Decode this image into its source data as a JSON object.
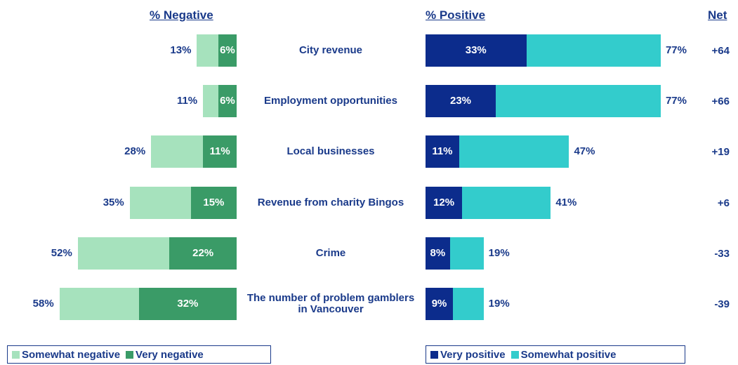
{
  "chart_data": {
    "type": "diverging-bar",
    "headers": {
      "negative": "% Negative",
      "positive": "% Positive",
      "net": "Net"
    },
    "categories": [
      "City revenue",
      "Employment opportunities",
      "Local businesses",
      "Revenue from charity Bingos",
      "Crime",
      "The number of problem gamblers in Vancouver"
    ],
    "legend": [
      {
        "name": "Somewhat negative",
        "color": "#a6e2bd"
      },
      {
        "name": "Very negative",
        "color": "#3a9b67"
      },
      {
        "name": "Very positive",
        "color": "#0c2c8c"
      },
      {
        "name": "Somewhat positive",
        "color": "#33cccc"
      }
    ],
    "negative_total": {
      "values": [
        13,
        11,
        28,
        35,
        52,
        58
      ],
      "value_labels": [
        "13%",
        "11%",
        "28%",
        "35%",
        "52%",
        "58%"
      ]
    },
    "very_negative": {
      "values": [
        6,
        6,
        11,
        15,
        22,
        32
      ],
      "value_labels": [
        "6%",
        "6%",
        "11%",
        "15%",
        "22%",
        "32%"
      ]
    },
    "very_positive": {
      "values": [
        33,
        23,
        11,
        12,
        8,
        9
      ],
      "value_labels": [
        "33%",
        "23%",
        "11%",
        "12%",
        "8%",
        "9%"
      ]
    },
    "positive_total": {
      "values": [
        77,
        77,
        47,
        41,
        19,
        19
      ],
      "value_labels": [
        "77%",
        "77%",
        "47%",
        "41%",
        "19%",
        "19%"
      ]
    },
    "net": {
      "values": [
        64,
        66,
        19,
        6,
        -33,
        -39
      ],
      "value_labels": [
        "+64",
        "+66",
        "+19",
        "+6",
        "-33",
        "-39"
      ]
    }
  }
}
